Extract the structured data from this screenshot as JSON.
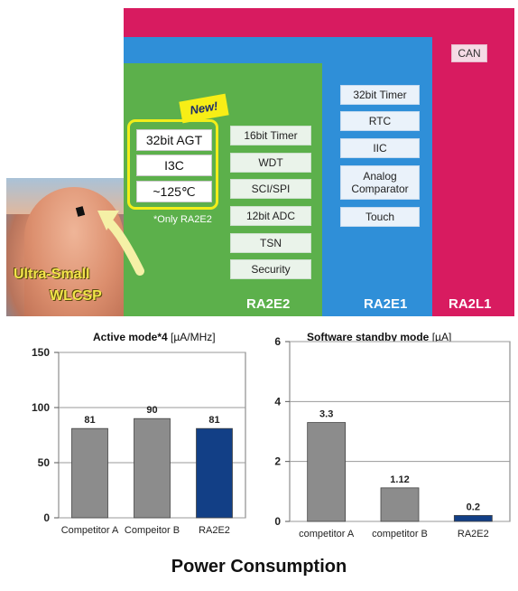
{
  "diagram": {
    "new_badge": "New!",
    "highlight_items": [
      "32bit AGT",
      "I3C",
      "~125℃"
    ],
    "only_note": "*Only RA2E2",
    "ra2e2_features": [
      "16bit Timer",
      "WDT",
      "SCI/SPI",
      "12bit ADC",
      "TSN",
      "Security"
    ],
    "ra2e1_features": [
      "32bit Timer",
      "RTC",
      "IIC",
      "Analog Comparator",
      "Touch"
    ],
    "ra2l1_features": [
      "CAN"
    ],
    "panel_labels": {
      "ra2e2": "RA2E2",
      "ra2e1": "RA2E1",
      "ra2l1": "RA2L1"
    },
    "photo_label_line1": "Ultra-Small",
    "photo_label_line2": "WLCSP",
    "colors": {
      "ra2e2": "#5cb04b",
      "ra2e1": "#2f8fd8",
      "ra2l1": "#d81b60",
      "highlight": "#f2ee1a"
    }
  },
  "chart_data": [
    {
      "type": "bar",
      "title": "Active mode*4",
      "unit": "[µA/MHz]",
      "categories": [
        "Competitor A",
        "Compeitor B",
        "RA2E2"
      ],
      "values": [
        81,
        90,
        81
      ],
      "value_labels": [
        "81",
        "90",
        "81"
      ],
      "ylim": [
        0,
        150
      ],
      "yticks": [
        0,
        50,
        100,
        150
      ],
      "ytick_labels": [
        "0",
        "50",
        "100",
        "150"
      ],
      "bar_colors": [
        "#8c8c8c",
        "#8c8c8c",
        "#123f86"
      ],
      "grid": true
    },
    {
      "type": "bar",
      "title": "Software standby mode",
      "unit": "[µA]",
      "categories": [
        "competitor A",
        "competitor B",
        "RA2E2"
      ],
      "values": [
        3.3,
        1.12,
        0.2
      ],
      "value_labels": [
        "3.3",
        "1.12",
        "0.2"
      ],
      "ylim": [
        0,
        6
      ],
      "yticks": [
        0,
        2,
        4,
        6
      ],
      "ytick_labels": [
        "0",
        "2",
        "4",
        "6"
      ],
      "bar_colors": [
        "#8c8c8c",
        "#8c8c8c",
        "#123f86"
      ],
      "grid": true
    }
  ],
  "footer_title": "Power Consumption"
}
